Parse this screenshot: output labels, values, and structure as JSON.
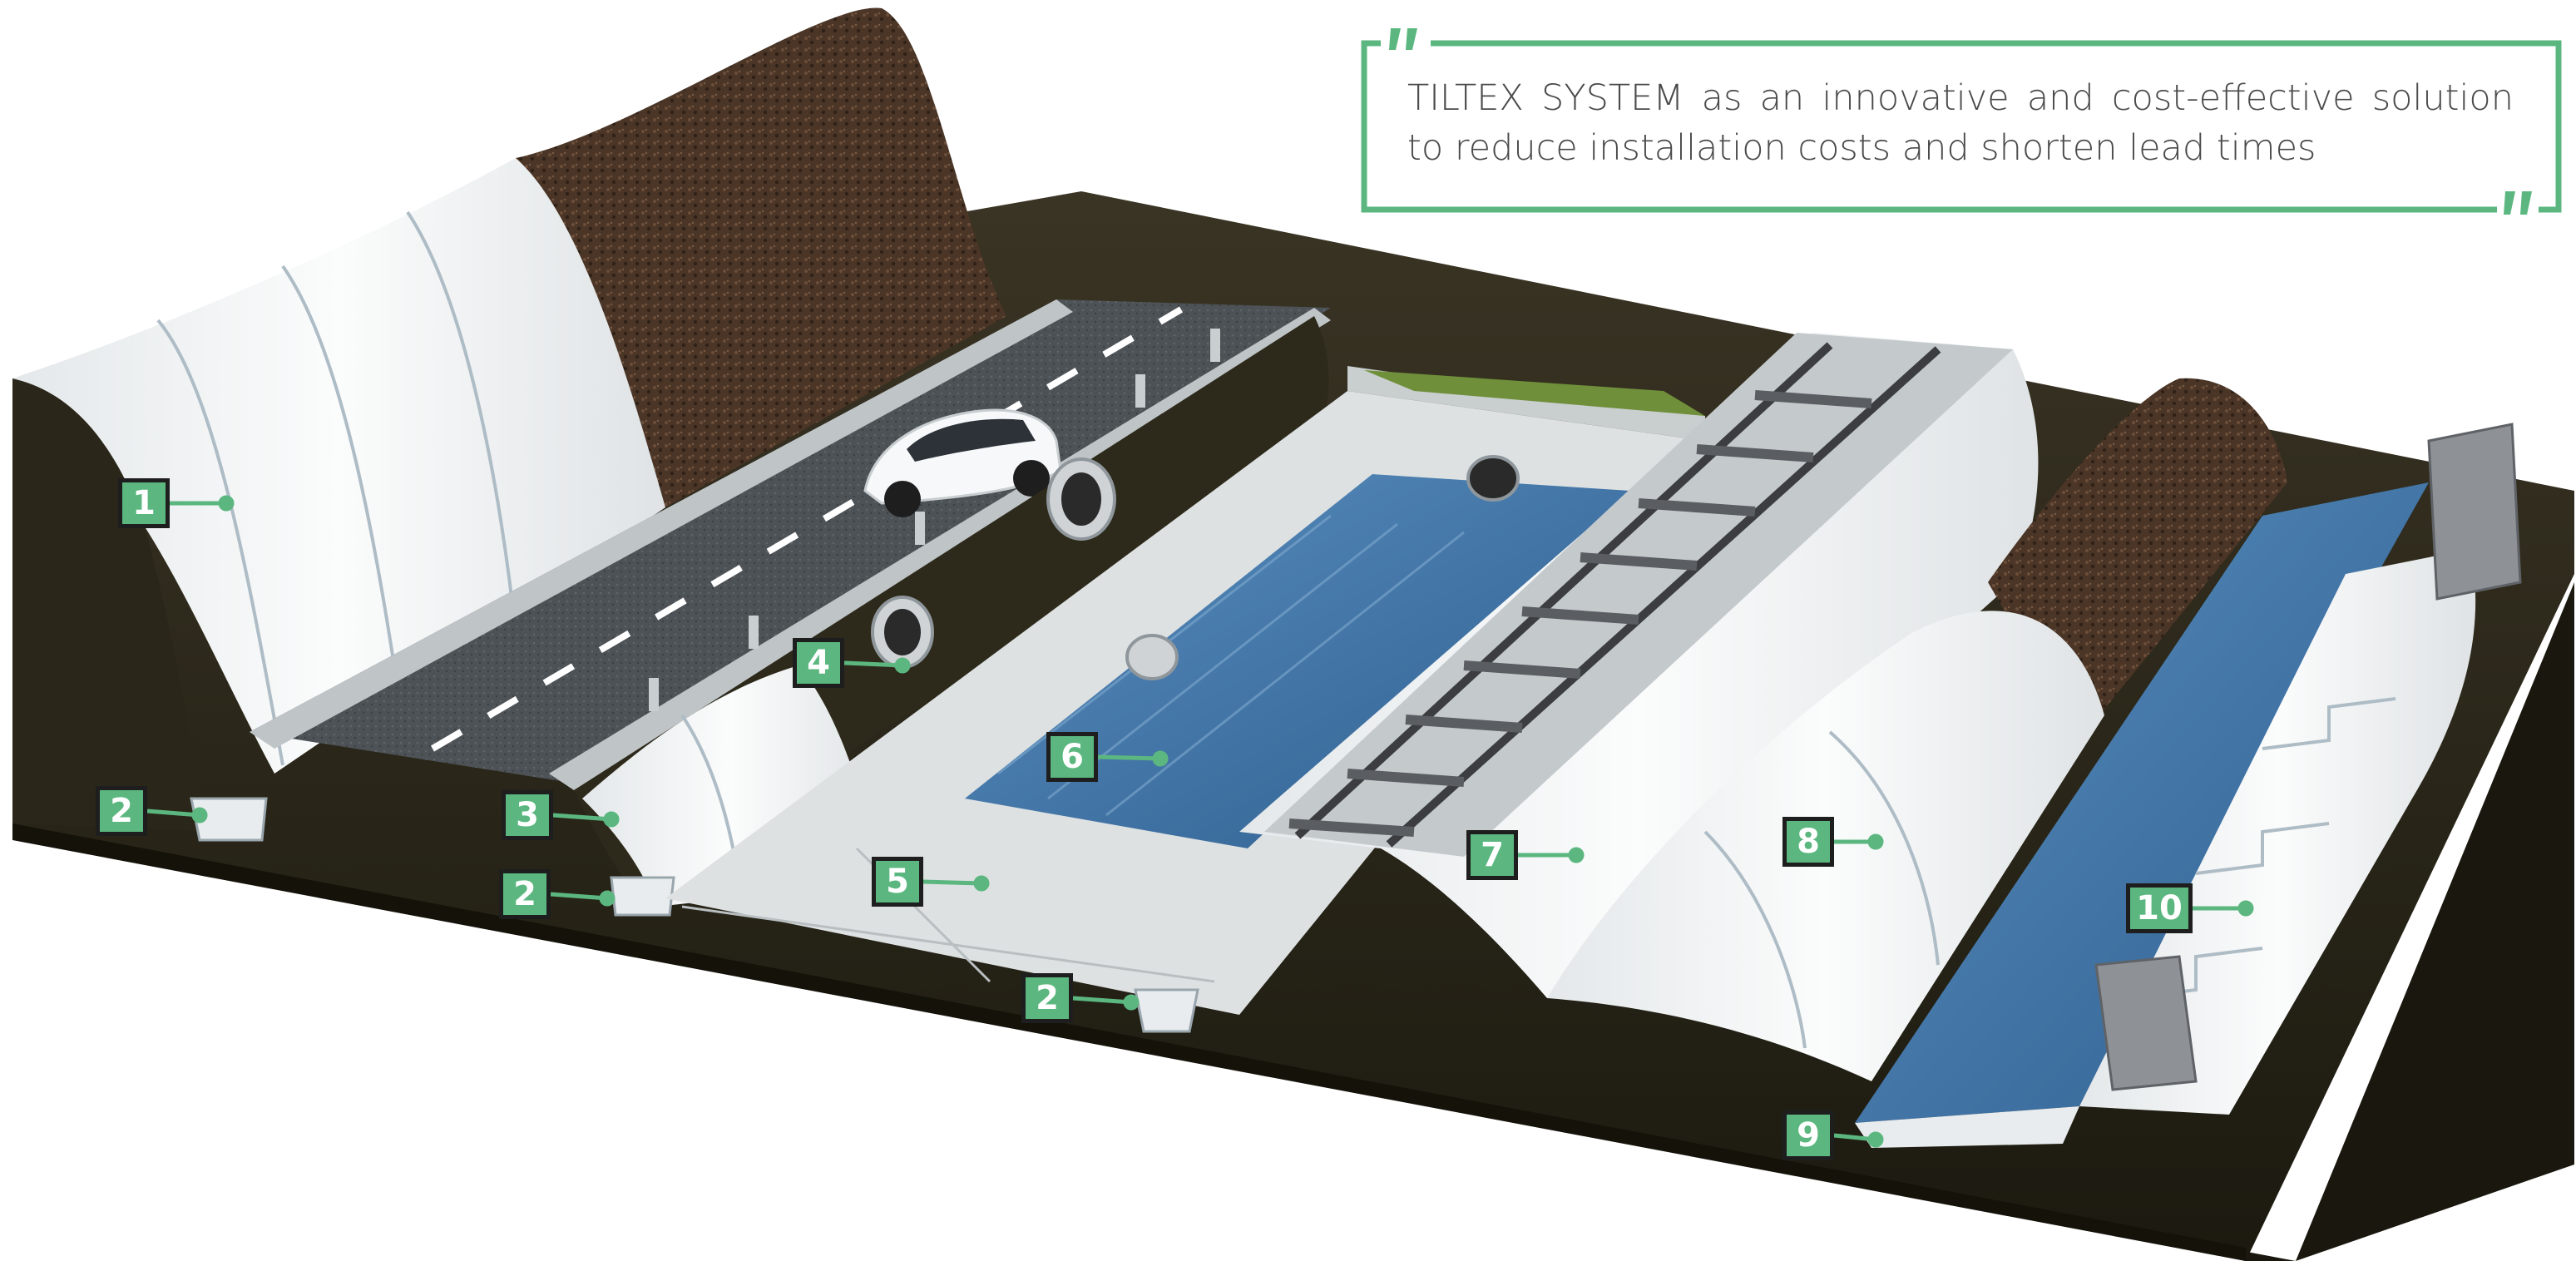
{
  "quote": {
    "text": "TILTEX SYSTEM as an innovative and cost-effective solution to reduce installation costs and shorten lead times"
  },
  "colors": {
    "accent": "#5bb77f",
    "label_border": "#1e1e1e",
    "soil": "#2e2a1c",
    "soil_dark": "#1f1c12",
    "liner_white": "#f2f4f5",
    "water": "#3d6f9e",
    "asphalt": "#4d5256",
    "concrete": "#d9dcdc",
    "rail": "#3b3d40",
    "grass": "#6f8f3a",
    "mulch": "#4b3526"
  },
  "callouts": [
    {
      "id": "1",
      "label": "1"
    },
    {
      "id": "2a",
      "label": "2"
    },
    {
      "id": "2b",
      "label": "2"
    },
    {
      "id": "2c",
      "label": "2"
    },
    {
      "id": "3",
      "label": "3"
    },
    {
      "id": "4",
      "label": "4"
    },
    {
      "id": "5",
      "label": "5"
    },
    {
      "id": "6",
      "label": "6"
    },
    {
      "id": "7",
      "label": "7"
    },
    {
      "id": "8",
      "label": "8"
    },
    {
      "id": "9",
      "label": "9"
    },
    {
      "id": "10",
      "label": "10"
    }
  ]
}
